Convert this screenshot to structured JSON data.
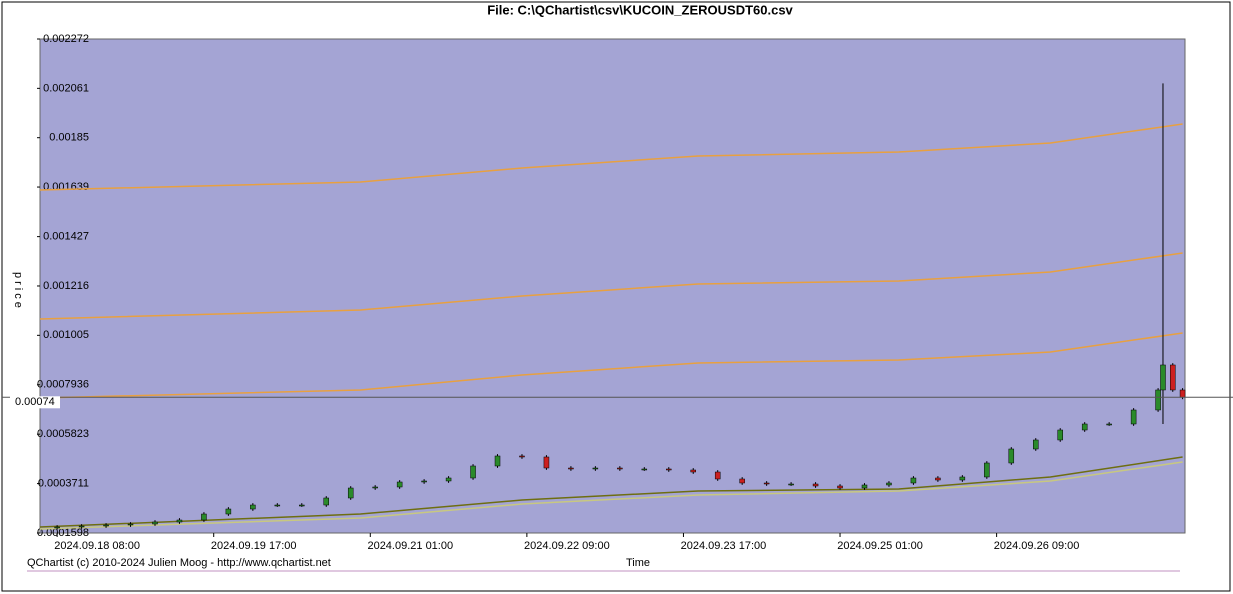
{
  "chart_data": {
    "type": "candlestick",
    "title": "File: C:\\QChartist\\csv\\KUCOIN_ZEROUSDT60.csv",
    "y_label": "price",
    "x_label": "Time",
    "footer": "QChartist (c) 2010-2024 Julien Moog - http://www.qchartist.net",
    "current_price": 0.00074,
    "ylim": [
      0.0001598,
      0.002272
    ],
    "yticks": [
      0.0001598,
      0.0003711,
      0.0005823,
      0.0007936,
      0.001005,
      0.001216,
      0.001427,
      0.001639,
      0.00185,
      0.002061,
      0.002272
    ],
    "xlim": [
      -3.5,
      230.5
    ],
    "xticks": [
      {
        "value": 0,
        "label": "2024.09.18 08:00"
      },
      {
        "value": 32,
        "label": "2024.09.19 17:00"
      },
      {
        "value": 64,
        "label": "2024.09.21 01:00"
      },
      {
        "value": 96,
        "label": "2024.09.22 09:00"
      },
      {
        "value": 128,
        "label": "2024.09.23 17:00"
      },
      {
        "value": 160,
        "label": "2024.09.25 01:00"
      },
      {
        "value": 192,
        "label": "2024.09.26 09:00"
      }
    ],
    "up_color": "#2a8a2a",
    "down_color": "#cc2020",
    "x": [
      0,
      5,
      10,
      15,
      20,
      25,
      30,
      35,
      40,
      45,
      50,
      55,
      60,
      65,
      70,
      75,
      80,
      85,
      90,
      95,
      100,
      105,
      110,
      115,
      120,
      125,
      130,
      135,
      140,
      145,
      150,
      155,
      160,
      165,
      170,
      175,
      180,
      185,
      190,
      195,
      200,
      205,
      210,
      215,
      220,
      225,
      226,
      228,
      230
    ],
    "open": [
      0.000183,
      0.0001855,
      0.0001897,
      0.000194,
      0.0001983,
      0.0002068,
      0.0002154,
      0.000241,
      0.0002624,
      0.0002795,
      0.0002795,
      0.0002795,
      0.0003095,
      0.0003522,
      0.0003565,
      0.0003779,
      0.0003822,
      0.000395,
      0.0004463,
      0.0004891,
      0.0004848,
      0.0004377,
      0.0004335,
      0.0004377,
      0.0004335,
      0.0004335,
      0.0004292,
      0.0004206,
      0.0003907,
      0.0003736,
      0.0003693,
      0.0003693,
      0.0003608,
      0.0003522,
      0.0003651,
      0.0003736,
      0.000395,
      0.0003864,
      0.0003993,
      0.0004591,
      0.000519,
      0.0005575,
      0.0006002,
      0.0006259,
      0.0006259,
      0.0006858,
      0.0007713,
      0.0008782,
      0.0007713
    ],
    "high": [
      0.0001935,
      0.0001977,
      0.000202,
      0.0002063,
      0.0002148,
      0.0002234,
      0.000249,
      0.0002704,
      0.0002875,
      0.0002875,
      0.0002875,
      0.0003175,
      0.0003602,
      0.0003645,
      0.0003859,
      0.0003902,
      0.000403,
      0.0004543,
      0.0004971,
      0.0004971,
      0.0004928,
      0.0004457,
      0.0004457,
      0.0004457,
      0.0004415,
      0.0004415,
      0.0004372,
      0.0004286,
      0.0003987,
      0.0003816,
      0.0003773,
      0.0003773,
      0.0003688,
      0.0003731,
      0.0003816,
      0.000403,
      0.000403,
      0.0004073,
      0.0004671,
      0.000527,
      0.0005655,
      0.0006082,
      0.0006339,
      0.0006339,
      0.0006938,
      0.0007793,
      0.0020824,
      0.0008862,
      0.0007793
    ],
    "low": [
      0.000175,
      0.0001775,
      0.0001817,
      0.000186,
      0.0001903,
      0.0001988,
      0.0002074,
      0.000233,
      0.0002544,
      0.0002715,
      0.0002715,
      0.0002715,
      0.0003015,
      0.0003442,
      0.0003485,
      0.0003699,
      0.0003742,
      0.000387,
      0.0004383,
      0.0004768,
      0.0004297,
      0.0004255,
      0.0004255,
      0.0004255,
      0.0004255,
      0.0004212,
      0.0004126,
      0.0003827,
      0.0003656,
      0.0003613,
      0.0003613,
      0.0003528,
      0.0003442,
      0.0003442,
      0.0003571,
      0.0003656,
      0.0003784,
      0.0003784,
      0.0003913,
      0.0004511,
      0.000511,
      0.0005495,
      0.0005922,
      0.0006179,
      0.0006179,
      0.0006778,
      0.0006259,
      0.0007633,
      0.000732
    ],
    "close": [
      0.0001855,
      0.0001897,
      0.000194,
      0.0001983,
      0.0002068,
      0.0002154,
      0.000241,
      0.0002624,
      0.0002795,
      0.0002795,
      0.0002795,
      0.0003095,
      0.0003522,
      0.0003565,
      0.0003779,
      0.0003822,
      0.000395,
      0.0004463,
      0.0004891,
      0.0004848,
      0.0004377,
      0.0004335,
      0.0004377,
      0.0004335,
      0.0004335,
      0.0004292,
      0.0004206,
      0.0003907,
      0.0003736,
      0.0003693,
      0.0003693,
      0.0003608,
      0.0003522,
      0.0003651,
      0.0003736,
      0.000395,
      0.0003864,
      0.0003993,
      0.0004591,
      0.000519,
      0.0005575,
      0.0006002,
      0.0006259,
      0.0006259,
      0.0006858,
      0.0007713,
      0.0008782,
      0.0007713,
      0.00074
    ],
    "overlays": {
      "x": [
        -3.5,
        62,
        95,
        131,
        172,
        203,
        230
      ],
      "lines": [
        {
          "color": "#e8a040",
          "values": [
            0.0016265,
            0.0016607,
            0.0017205,
            0.0017719,
            0.001789,
            0.0018274,
            0.0019087
          ]
        },
        {
          "color": "#e8a040",
          "values": [
            0.0010749,
            0.0011134,
            0.0011732,
            0.0012245,
            0.0012374,
            0.0012758,
            0.0013571
          ]
        },
        {
          "color": "#e8a040",
          "values": [
            0.0007371,
            0.0007713,
            0.0008354,
            0.0008867,
            0.0008996,
            0.0009338,
            0.001015
          ]
        },
        {
          "color": "#6e6e10",
          "values": [
            0.0001855,
            0.000241,
            0.0003009,
            0.0003394,
            0.0003479,
            0.0003993,
            0.0004848
          ]
        },
        {
          "color": "#c8c880",
          "values": [
            0.0001769,
            0.0002239,
            0.0002838,
            0.0003223,
            0.0003394,
            0.0003822,
            0.0004634
          ]
        }
      ]
    }
  }
}
